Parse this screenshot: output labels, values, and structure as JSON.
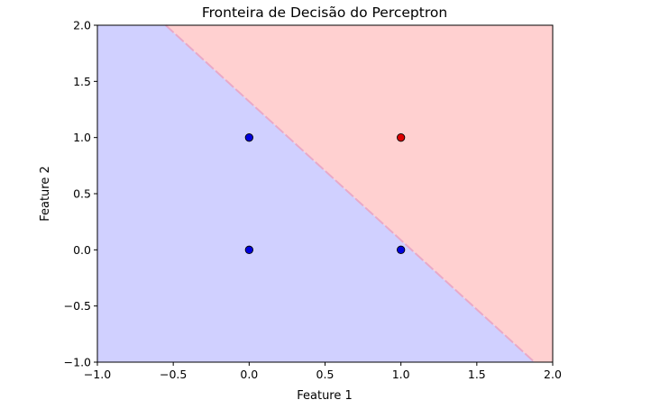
{
  "chart_data": {
    "type": "scatter",
    "title": "Fronteira de Decisão do Perceptron",
    "xlabel": "Feature 1",
    "ylabel": "Feature 2",
    "xlim": [
      -1.0,
      2.0
    ],
    "ylim": [
      -1.0,
      2.0
    ],
    "xticks": [
      "−1.0",
      "−0.5",
      "0.0",
      "0.5",
      "1.0",
      "1.5",
      "2.0"
    ],
    "yticks": [
      "−1.0",
      "−0.5",
      "0.0",
      "0.5",
      "1.0",
      "1.5",
      "2.0"
    ],
    "xtick_values": [
      -1.0,
      -0.5,
      0.0,
      0.5,
      1.0,
      1.5,
      2.0
    ],
    "ytick_values": [
      -1.0,
      -0.5,
      0.0,
      0.5,
      1.0,
      1.5,
      2.0
    ],
    "grid": false,
    "decision_regions": [
      {
        "class": 0,
        "color": "#d0d0ff",
        "side": "below boundary"
      },
      {
        "class": 1,
        "color": "#ffd0d0",
        "side": "above boundary"
      }
    ],
    "decision_boundary": {
      "points": [
        [
          -0.55,
          2.0
        ],
        [
          1.88,
          -1.0
        ]
      ]
    },
    "points": [
      {
        "x": 0,
        "y": 0,
        "class": 0,
        "color": "#0000dd"
      },
      {
        "x": 0,
        "y": 1,
        "class": 0,
        "color": "#0000dd"
      },
      {
        "x": 1,
        "y": 0,
        "class": 0,
        "color": "#0000dd"
      },
      {
        "x": 1,
        "y": 1,
        "class": 1,
        "color": "#dd0000"
      }
    ]
  }
}
